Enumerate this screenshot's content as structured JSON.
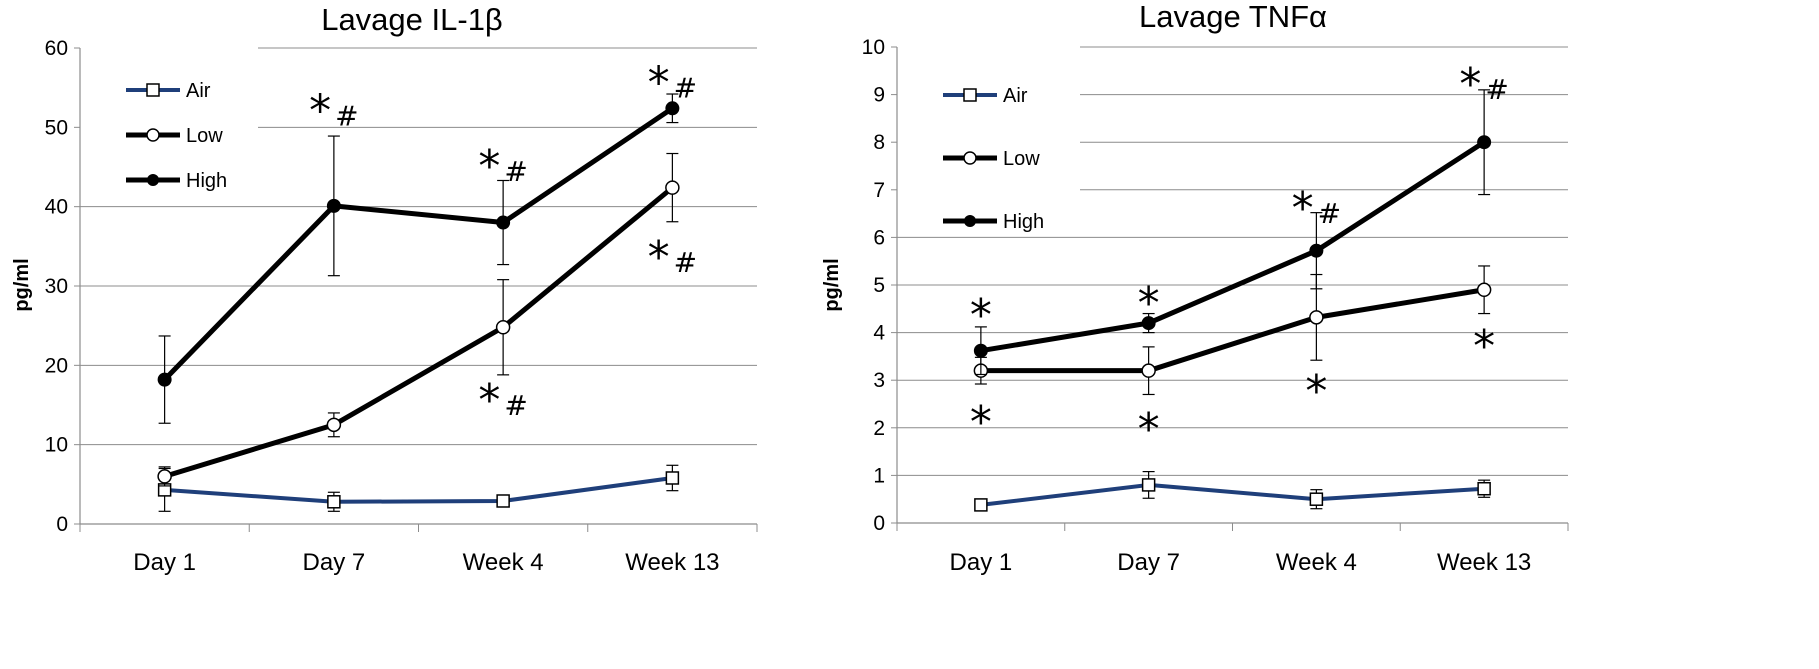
{
  "chart_data": [
    {
      "type": "line",
      "title": "Lavage IL-1β",
      "ylabel": "pg/ml",
      "xlabel": "",
      "ylim": [
        0,
        60
      ],
      "yticks": [
        0,
        10,
        20,
        30,
        40,
        50,
        60
      ],
      "categories": [
        "Day 1",
        "Day 7",
        "Week 4",
        "Week 13"
      ],
      "legend_position": "top-left",
      "series": [
        {
          "name": "Air",
          "color": "#1f3f7a",
          "marker": "open-square",
          "values": [
            4.3,
            2.8,
            2.9,
            5.8
          ],
          "errors": [
            2.7,
            1.2,
            0.6,
            1.6
          ]
        },
        {
          "name": "Low",
          "color": "#000000",
          "marker": "open-circle",
          "values": [
            6.0,
            12.5,
            24.8,
            42.4
          ],
          "errors": [
            1.2,
            1.5,
            6.0,
            4.3
          ]
        },
        {
          "name": "High",
          "color": "#000000",
          "marker": "filled-circle",
          "values": [
            18.2,
            40.1,
            38.0,
            52.4
          ],
          "errors": [
            5.5,
            8.8,
            5.3,
            1.8
          ]
        }
      ],
      "annotations": [
        {
          "text": "*#",
          "category": "Day 7",
          "y": 52,
          "anchor": "above-high"
        },
        {
          "text": "*#",
          "category": "Week 4",
          "y": 45,
          "anchor": "above-high"
        },
        {
          "text": "*#",
          "category": "Week 13",
          "y": 55.5,
          "anchor": "above-high"
        },
        {
          "text": "*#",
          "category": "Week 4",
          "y": 15.5,
          "anchor": "below-low"
        },
        {
          "text": "*#",
          "category": "Week 13",
          "y": 33.5,
          "anchor": "below-low"
        }
      ]
    },
    {
      "type": "line",
      "title": "Lavage TNFα",
      "ylabel": "pg/ml",
      "xlabel": "",
      "ylim": [
        0,
        10
      ],
      "yticks": [
        0,
        1,
        2,
        3,
        4,
        5,
        6,
        7,
        8,
        9,
        10
      ],
      "categories": [
        "Day 1",
        "Day 7",
        "Week 4",
        "Week 13"
      ],
      "legend_position": "top-left",
      "series": [
        {
          "name": "Air",
          "color": "#1f3f7a",
          "marker": "open-square",
          "values": [
            0.38,
            0.8,
            0.5,
            0.72
          ],
          "errors": [
            0.05,
            0.28,
            0.2,
            0.18
          ]
        },
        {
          "name": "Low",
          "color": "#000000",
          "marker": "open-circle",
          "values": [
            3.2,
            3.2,
            4.32,
            4.9
          ],
          "errors": [
            0.28,
            0.5,
            0.9,
            0.5
          ]
        },
        {
          "name": "High",
          "color": "#000000",
          "marker": "filled-circle",
          "values": [
            3.62,
            4.2,
            5.72,
            8.0
          ],
          "errors": [
            0.5,
            0.2,
            0.8,
            1.1
          ]
        }
      ],
      "annotations": [
        {
          "text": "*",
          "category": "Day 1",
          "y": 4.35,
          "anchor": "above-high"
        },
        {
          "text": "*",
          "category": "Day 7",
          "y": 4.6,
          "anchor": "above-high"
        },
        {
          "text": "*#",
          "category": "Week 4",
          "y": 6.6,
          "anchor": "above-high"
        },
        {
          "text": "*#",
          "category": "Week 13",
          "y": 9.2,
          "anchor": "above-high"
        },
        {
          "text": "*",
          "category": "Day 1",
          "y": 2.1,
          "anchor": "below-low"
        },
        {
          "text": "*",
          "category": "Day 7",
          "y": 1.95,
          "anchor": "below-low"
        },
        {
          "text": "*",
          "category": "Week 4",
          "y": 2.75,
          "anchor": "below-low"
        },
        {
          "text": "*",
          "category": "Week 13",
          "y": 3.7,
          "anchor": "below-low"
        }
      ]
    }
  ]
}
